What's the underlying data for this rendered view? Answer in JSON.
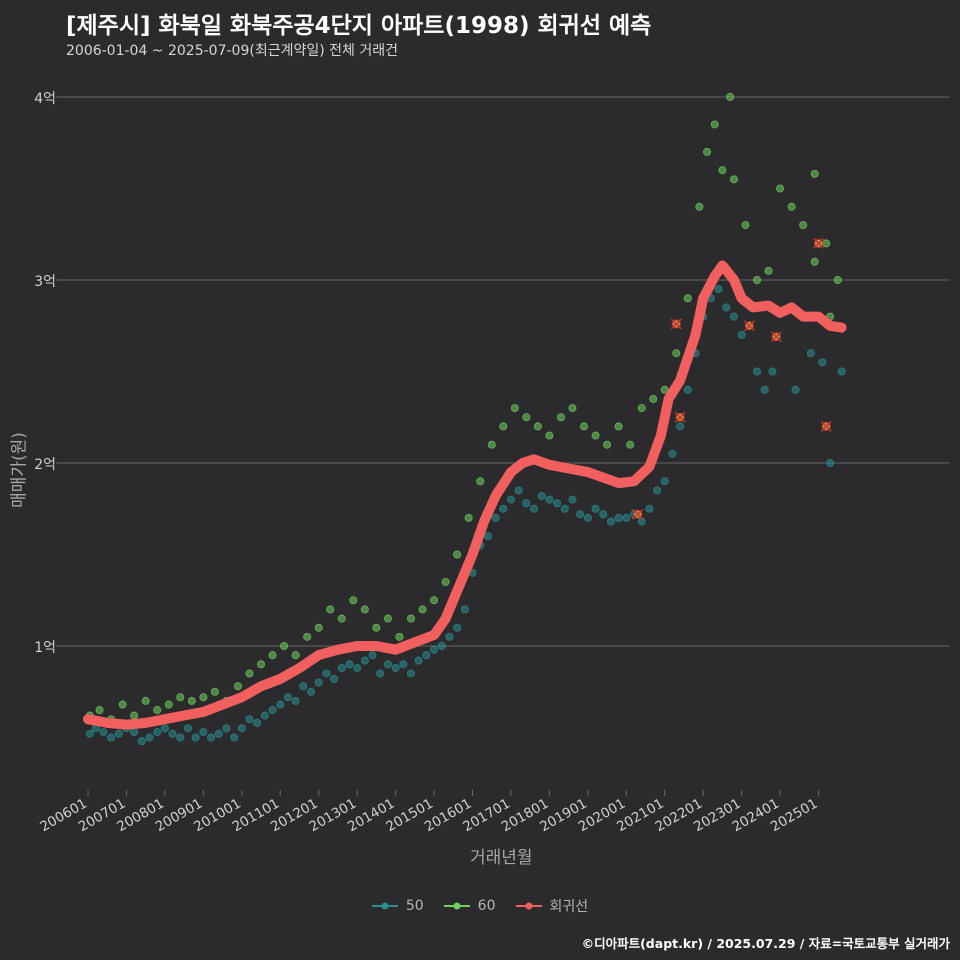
{
  "header": {
    "title": "[제주시] 화북일 화북주공4단지 아파트(1998) 회귀선 예측",
    "subtitle": "2006-01-04 ~ 2025-07-09(최근계약일) 전체 거래건"
  },
  "footer": {
    "credit": "©디아파트(dapt.kr) / 2025.07.29 / 자료=국토교통부 실거래가"
  },
  "colors": {
    "background": "#2b2a2d",
    "series_50": "#2a8f90",
    "series_60": "#6fd05c",
    "regression": "#f25f5f",
    "grid": "#5a5a5c"
  },
  "chart_data": {
    "type": "scatter",
    "title": "[제주시] 화북일 화북주공4단지 아파트(1998) 회귀선 예측",
    "xlabel": "거래년월",
    "ylabel": "매매가(원)",
    "y_unit": "억",
    "ylim": [
      0.3,
      4.1
    ],
    "xlim": [
      2006.0,
      2025.75
    ],
    "grid": true,
    "legend_position": "bottom",
    "x_ticks": [
      {
        "x": 2006.0,
        "label": "200601"
      },
      {
        "x": 2007.0,
        "label": "200701"
      },
      {
        "x": 2008.0,
        "label": "200801"
      },
      {
        "x": 2009.0,
        "label": "200901"
      },
      {
        "x": 2010.0,
        "label": "201001"
      },
      {
        "x": 2011.0,
        "label": "201101"
      },
      {
        "x": 2012.0,
        "label": "201201"
      },
      {
        "x": 2013.0,
        "label": "201301"
      },
      {
        "x": 2014.0,
        "label": "201401"
      },
      {
        "x": 2015.0,
        "label": "201501"
      },
      {
        "x": 2016.0,
        "label": "201601"
      },
      {
        "x": 2017.0,
        "label": "201701"
      },
      {
        "x": 2018.0,
        "label": "201801"
      },
      {
        "x": 2019.0,
        "label": "201901"
      },
      {
        "x": 2020.0,
        "label": "202001"
      },
      {
        "x": 2021.0,
        "label": "202101"
      },
      {
        "x": 2022.0,
        "label": "202201"
      },
      {
        "x": 2023.0,
        "label": "202301"
      },
      {
        "x": 2024.0,
        "label": "202401"
      },
      {
        "x": 2025.0,
        "label": "202501"
      }
    ],
    "y_ticks": [
      {
        "y": 1,
        "label": "1억"
      },
      {
        "y": 2,
        "label": "2억"
      },
      {
        "y": 3,
        "label": "3억"
      },
      {
        "y": 4,
        "label": "4억"
      }
    ],
    "series": [
      {
        "name": "50",
        "color": "#2a8f90",
        "points": [
          [
            2006.05,
            0.52
          ],
          [
            2006.2,
            0.55
          ],
          [
            2006.4,
            0.53
          ],
          [
            2006.6,
            0.5
          ],
          [
            2006.8,
            0.52
          ],
          [
            2007.0,
            0.55
          ],
          [
            2007.2,
            0.53
          ],
          [
            2007.4,
            0.48
          ],
          [
            2007.6,
            0.5
          ],
          [
            2007.8,
            0.53
          ],
          [
            2008.0,
            0.55
          ],
          [
            2008.2,
            0.52
          ],
          [
            2008.4,
            0.5
          ],
          [
            2008.6,
            0.55
          ],
          [
            2008.8,
            0.5
          ],
          [
            2009.0,
            0.53
          ],
          [
            2009.2,
            0.5
          ],
          [
            2009.4,
            0.52
          ],
          [
            2009.6,
            0.55
          ],
          [
            2009.8,
            0.5
          ],
          [
            2010.0,
            0.55
          ],
          [
            2010.2,
            0.6
          ],
          [
            2010.4,
            0.58
          ],
          [
            2010.6,
            0.62
          ],
          [
            2010.8,
            0.65
          ],
          [
            2011.0,
            0.68
          ],
          [
            2011.2,
            0.72
          ],
          [
            2011.4,
            0.7
          ],
          [
            2011.6,
            0.78
          ],
          [
            2011.8,
            0.75
          ],
          [
            2012.0,
            0.8
          ],
          [
            2012.2,
            0.85
          ],
          [
            2012.4,
            0.82
          ],
          [
            2012.6,
            0.88
          ],
          [
            2012.8,
            0.9
          ],
          [
            2013.0,
            0.88
          ],
          [
            2013.2,
            0.92
          ],
          [
            2013.4,
            0.95
          ],
          [
            2013.6,
            0.85
          ],
          [
            2013.8,
            0.9
          ],
          [
            2014.0,
            0.88
          ],
          [
            2014.2,
            0.9
          ],
          [
            2014.4,
            0.85
          ],
          [
            2014.6,
            0.92
          ],
          [
            2014.8,
            0.95
          ],
          [
            2015.0,
            0.98
          ],
          [
            2015.2,
            1.0
          ],
          [
            2015.4,
            1.05
          ],
          [
            2015.6,
            1.1
          ],
          [
            2015.8,
            1.2
          ],
          [
            2016.0,
            1.4
          ],
          [
            2016.2,
            1.55
          ],
          [
            2016.4,
            1.6
          ],
          [
            2016.6,
            1.7
          ],
          [
            2016.8,
            1.75
          ],
          [
            2017.0,
            1.8
          ],
          [
            2017.2,
            1.85
          ],
          [
            2017.4,
            1.78
          ],
          [
            2017.6,
            1.75
          ],
          [
            2017.8,
            1.82
          ],
          [
            2018.0,
            1.8
          ],
          [
            2018.2,
            1.78
          ],
          [
            2018.4,
            1.75
          ],
          [
            2018.6,
            1.8
          ],
          [
            2018.8,
            1.72
          ],
          [
            2019.0,
            1.7
          ],
          [
            2019.2,
            1.75
          ],
          [
            2019.4,
            1.72
          ],
          [
            2019.6,
            1.68
          ],
          [
            2019.8,
            1.7
          ],
          [
            2020.0,
            1.7
          ],
          [
            2020.2,
            1.72
          ],
          [
            2020.4,
            1.68
          ],
          [
            2020.6,
            1.75
          ],
          [
            2020.8,
            1.85
          ],
          [
            2021.0,
            1.9
          ],
          [
            2021.2,
            2.05
          ],
          [
            2021.4,
            2.2
          ],
          [
            2021.6,
            2.4
          ],
          [
            2021.8,
            2.6
          ],
          [
            2022.0,
            2.8
          ],
          [
            2022.2,
            2.9
          ],
          [
            2022.4,
            2.95
          ],
          [
            2022.6,
            2.85
          ],
          [
            2022.8,
            2.8
          ],
          [
            2023.0,
            2.7
          ],
          [
            2023.4,
            2.5
          ],
          [
            2023.6,
            2.4
          ],
          [
            2023.8,
            2.5
          ],
          [
            2024.4,
            2.4
          ],
          [
            2024.8,
            2.6
          ],
          [
            2025.1,
            2.55
          ],
          [
            2025.3,
            2.0
          ],
          [
            2025.6,
            2.5
          ]
        ]
      },
      {
        "name": "60",
        "color": "#6fd05c",
        "points": [
          [
            2006.05,
            0.62
          ],
          [
            2006.3,
            0.65
          ],
          [
            2006.6,
            0.6
          ],
          [
            2006.9,
            0.68
          ],
          [
            2007.2,
            0.62
          ],
          [
            2007.5,
            0.7
          ],
          [
            2007.8,
            0.65
          ],
          [
            2008.1,
            0.68
          ],
          [
            2008.4,
            0.72
          ],
          [
            2008.7,
            0.7
          ],
          [
            2009.0,
            0.72
          ],
          [
            2009.3,
            0.75
          ],
          [
            2009.6,
            0.7
          ],
          [
            2009.9,
            0.78
          ],
          [
            2010.2,
            0.85
          ],
          [
            2010.5,
            0.9
          ],
          [
            2010.8,
            0.95
          ],
          [
            2011.1,
            1.0
          ],
          [
            2011.4,
            0.95
          ],
          [
            2011.7,
            1.05
          ],
          [
            2012.0,
            1.1
          ],
          [
            2012.3,
            1.2
          ],
          [
            2012.6,
            1.15
          ],
          [
            2012.9,
            1.25
          ],
          [
            2013.2,
            1.2
          ],
          [
            2013.5,
            1.1
          ],
          [
            2013.8,
            1.15
          ],
          [
            2014.1,
            1.05
          ],
          [
            2014.4,
            1.15
          ],
          [
            2014.7,
            1.2
          ],
          [
            2015.0,
            1.25
          ],
          [
            2015.3,
            1.35
          ],
          [
            2015.6,
            1.5
          ],
          [
            2015.9,
            1.7
          ],
          [
            2016.2,
            1.9
          ],
          [
            2016.5,
            2.1
          ],
          [
            2016.8,
            2.2
          ],
          [
            2017.1,
            2.3
          ],
          [
            2017.4,
            2.25
          ],
          [
            2017.7,
            2.2
          ],
          [
            2018.0,
            2.15
          ],
          [
            2018.3,
            2.25
          ],
          [
            2018.6,
            2.3
          ],
          [
            2018.9,
            2.2
          ],
          [
            2019.2,
            2.15
          ],
          [
            2019.5,
            2.1
          ],
          [
            2019.8,
            2.2
          ],
          [
            2020.1,
            2.1
          ],
          [
            2020.4,
            2.3
          ],
          [
            2020.7,
            2.35
          ],
          [
            2021.0,
            2.4
          ],
          [
            2021.3,
            2.6
          ],
          [
            2021.6,
            2.9
          ],
          [
            2021.9,
            3.4
          ],
          [
            2022.1,
            3.7
          ],
          [
            2022.3,
            3.85
          ],
          [
            2022.5,
            3.6
          ],
          [
            2022.8,
            3.55
          ],
          [
            2023.1,
            3.3
          ],
          [
            2023.4,
            3.0
          ],
          [
            2023.7,
            3.05
          ],
          [
            2024.0,
            3.5
          ],
          [
            2024.3,
            3.4
          ],
          [
            2024.6,
            3.3
          ],
          [
            2024.9,
            3.1
          ],
          [
            2025.2,
            3.2
          ],
          [
            2025.5,
            3.0
          ],
          [
            2022.7,
            4.0
          ],
          [
            2025.3,
            2.8
          ],
          [
            2024.9,
            3.58
          ]
        ]
      }
    ],
    "highlighted_points": [
      [
        2021.3,
        2.76
      ],
      [
        2021.4,
        2.25
      ],
      [
        2020.3,
        1.72
      ],
      [
        2023.2,
        2.75
      ],
      [
        2023.9,
        2.69
      ],
      [
        2025.0,
        3.2
      ],
      [
        2025.2,
        2.2
      ]
    ],
    "regression": {
      "name": "회귀선",
      "color": "#f25f5f",
      "points": [
        [
          2006.0,
          0.6
        ],
        [
          2006.5,
          0.58
        ],
        [
          2007.0,
          0.57
        ],
        [
          2007.5,
          0.58
        ],
        [
          2008.0,
          0.6
        ],
        [
          2008.5,
          0.62
        ],
        [
          2009.0,
          0.64
        ],
        [
          2009.5,
          0.68
        ],
        [
          2010.0,
          0.72
        ],
        [
          2010.5,
          0.78
        ],
        [
          2011.0,
          0.82
        ],
        [
          2011.5,
          0.88
        ],
        [
          2012.0,
          0.95
        ],
        [
          2012.5,
          0.98
        ],
        [
          2013.0,
          1.0
        ],
        [
          2013.5,
          1.0
        ],
        [
          2014.0,
          0.98
        ],
        [
          2014.5,
          1.02
        ],
        [
          2015.0,
          1.06
        ],
        [
          2015.3,
          1.15
        ],
        [
          2015.6,
          1.3
        ],
        [
          2016.0,
          1.5
        ],
        [
          2016.3,
          1.68
        ],
        [
          2016.6,
          1.82
        ],
        [
          2017.0,
          1.95
        ],
        [
          2017.3,
          2.0
        ],
        [
          2017.6,
          2.02
        ],
        [
          2018.0,
          1.99
        ],
        [
          2018.5,
          1.97
        ],
        [
          2019.0,
          1.95
        ],
        [
          2019.4,
          1.92
        ],
        [
          2019.8,
          1.89
        ],
        [
          2020.2,
          1.9
        ],
        [
          2020.6,
          1.98
        ],
        [
          2020.9,
          2.15
        ],
        [
          2021.1,
          2.35
        ],
        [
          2021.4,
          2.45
        ],
        [
          2021.8,
          2.7
        ],
        [
          2022.0,
          2.9
        ],
        [
          2022.3,
          3.02
        ],
        [
          2022.5,
          3.08
        ],
        [
          2022.8,
          3.0
        ],
        [
          2023.0,
          2.9
        ],
        [
          2023.3,
          2.85
        ],
        [
          2023.7,
          2.86
        ],
        [
          2024.0,
          2.82
        ],
        [
          2024.3,
          2.85
        ],
        [
          2024.6,
          2.8
        ],
        [
          2025.0,
          2.8
        ],
        [
          2025.3,
          2.75
        ],
        [
          2025.6,
          2.74
        ]
      ]
    }
  }
}
